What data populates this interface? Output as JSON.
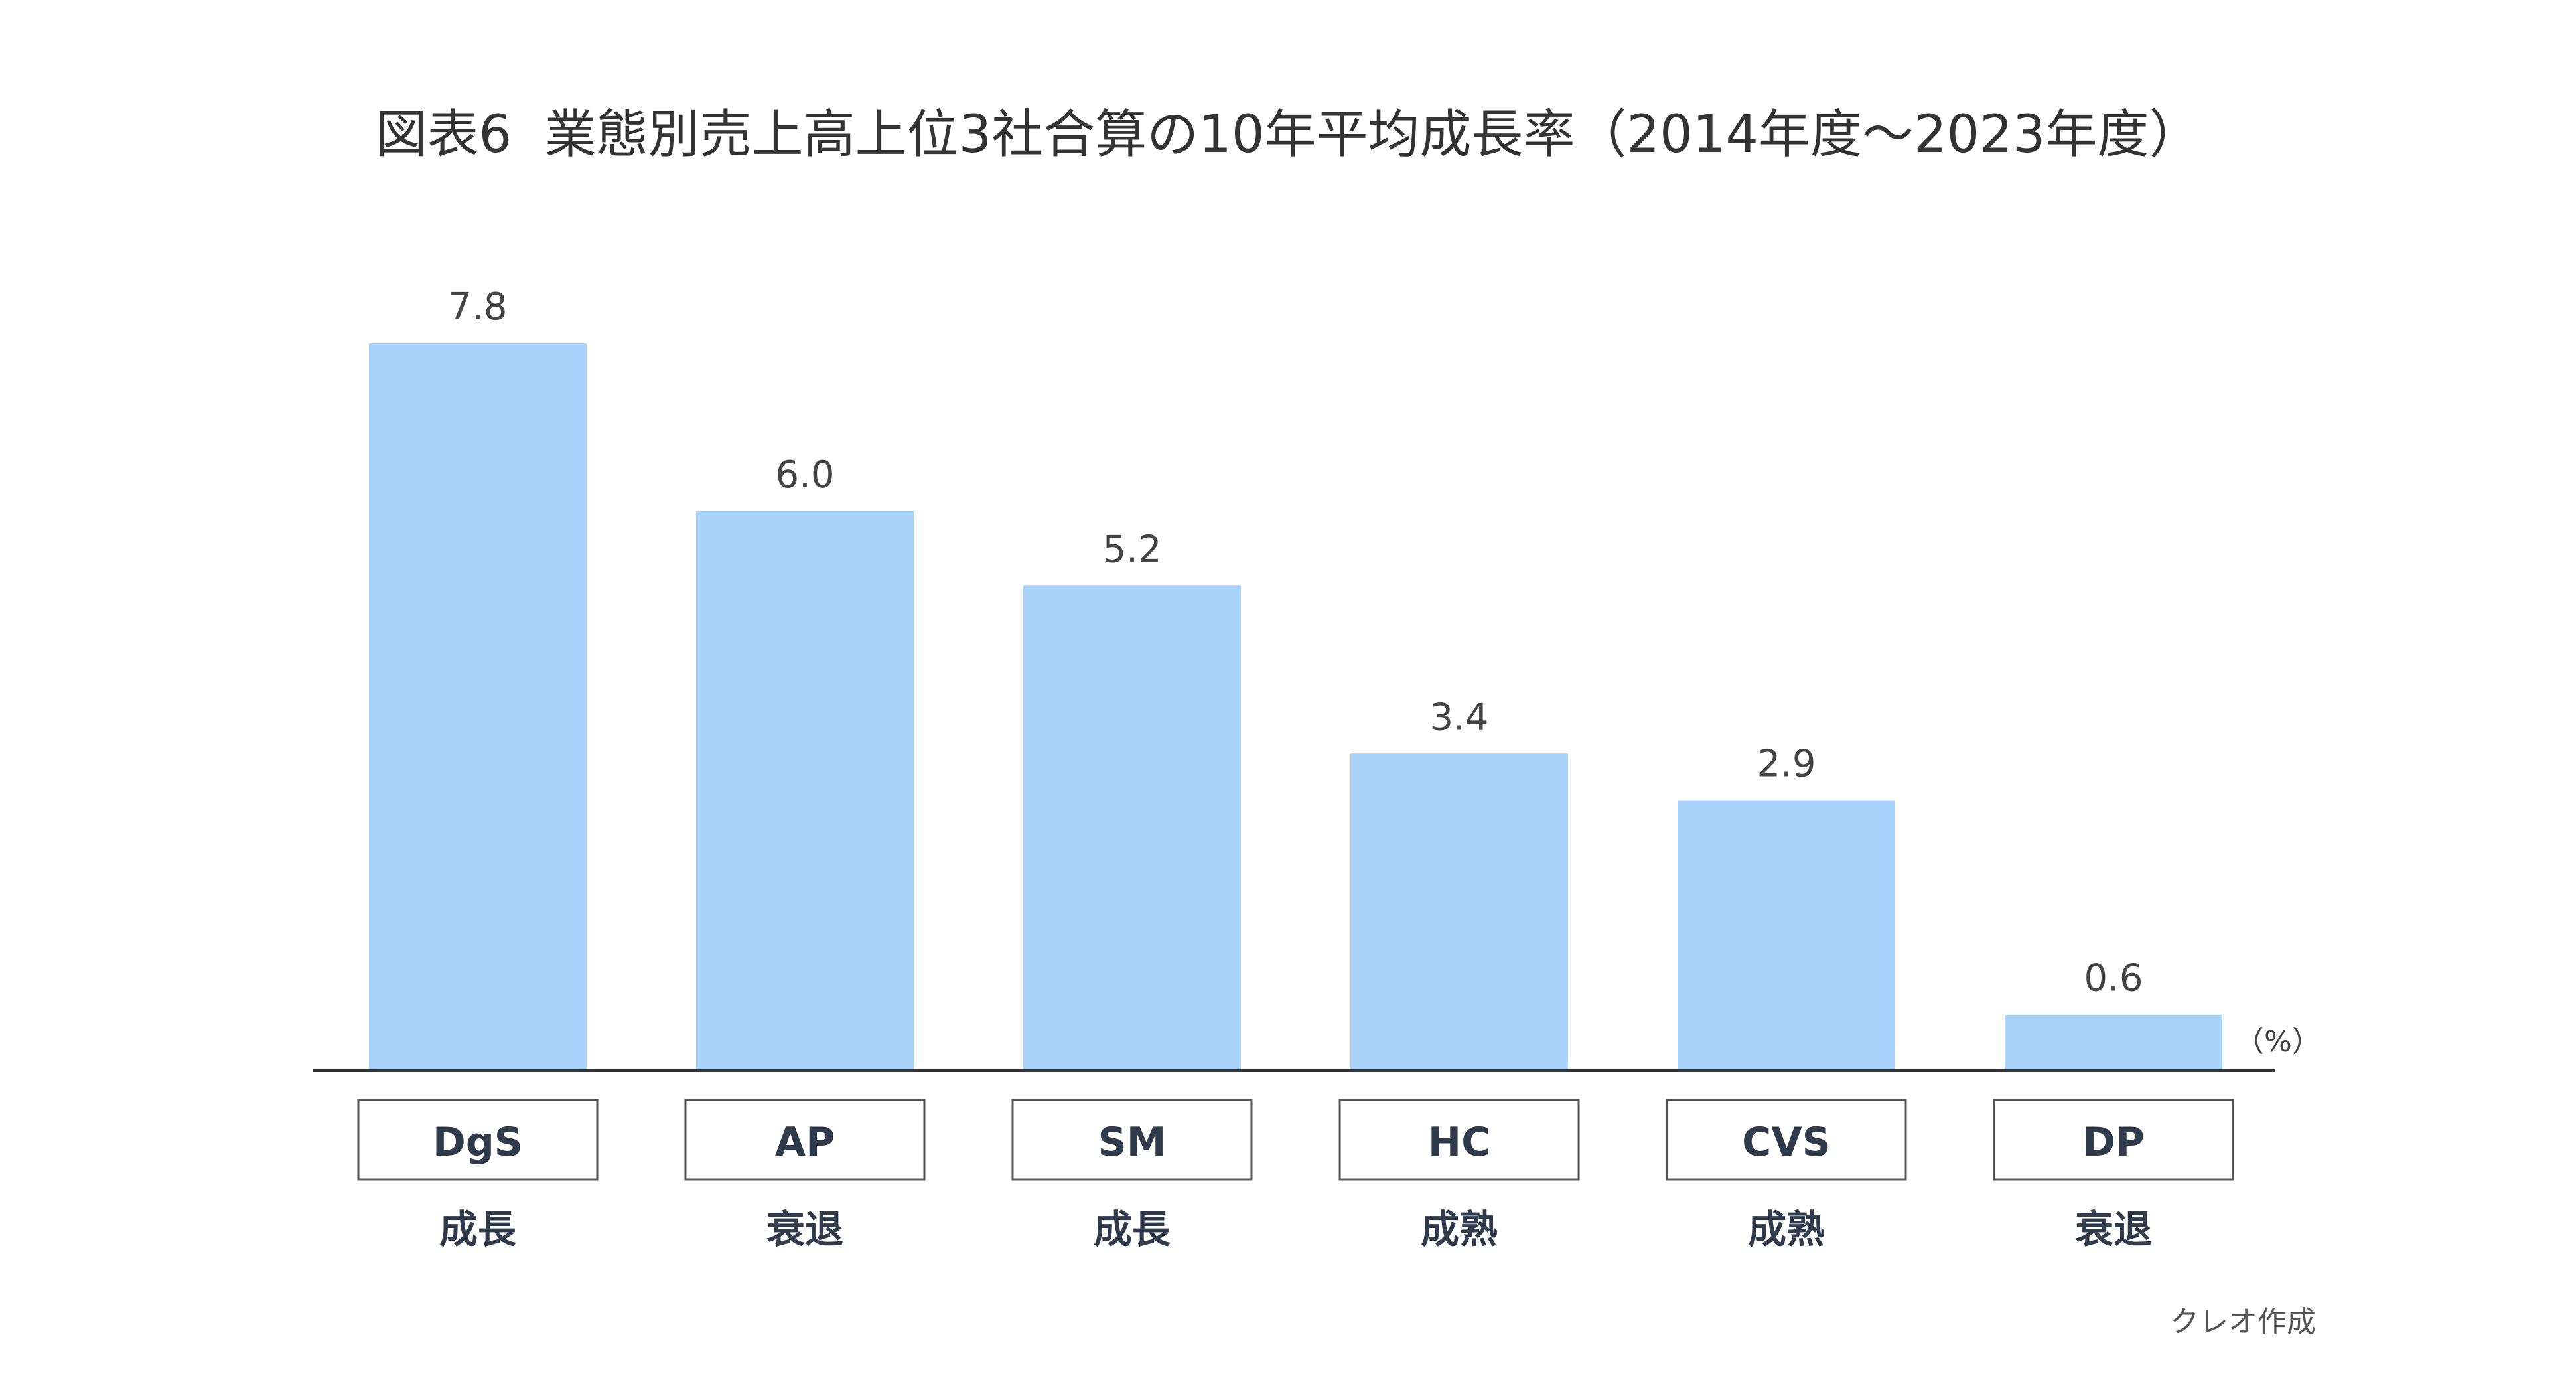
{
  "chart_data": {
    "type": "bar",
    "title": "図表6  業態別売上高上位3社合算の10年平均成長率（2014年度～2023年度）",
    "unit": "（%）",
    "categories": [
      "DgS",
      "AP",
      "SM",
      "HC",
      "CVS",
      "DP"
    ],
    "statuses": [
      "成長",
      "衰退",
      "成長",
      "成熟",
      "成熟",
      "衰退"
    ],
    "values": [
      7.8,
      6.0,
      5.2,
      3.4,
      2.9,
      0.6
    ],
    "value_labels": [
      "7.8",
      "6.0",
      "5.2",
      "3.4",
      "2.9",
      "0.6"
    ],
    "ylim": [
      0,
      7.8
    ],
    "grid": false,
    "bar_color": "#a9d3fb",
    "category_box_border": "#555555"
  },
  "source": "クレオ作成"
}
